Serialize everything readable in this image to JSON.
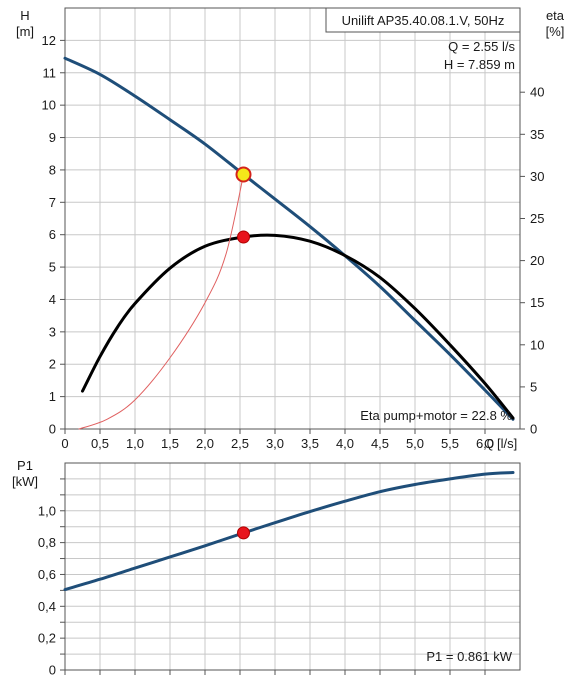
{
  "chart_data": [
    {
      "type": "line",
      "title": "Unilift AP35.40.08.1.V, 50Hz",
      "xlabel": "Q [l/s]",
      "ylabel_unit_top": "H",
      "ylabel_unit_bottom": "[m]",
      "y2label_unit_top": "eta",
      "y2label_unit_bottom": "[%]",
      "x_label_q": "Q",
      "x_label_unit": "[l/s]",
      "xlim": [
        0,
        6.5
      ],
      "ylim": [
        0,
        13
      ],
      "y2lim": [
        0,
        50
      ],
      "grid": true,
      "x_ticks": [
        "0",
        "0,5",
        "1,0",
        "1,5",
        "2,0",
        "2,5",
        "3,0",
        "3,5",
        "4,0",
        "4,5",
        "5,0",
        "5,5",
        "6,0"
      ],
      "y_ticks": [
        "0",
        "1",
        "2",
        "3",
        "4",
        "5",
        "6",
        "7",
        "8",
        "9",
        "10",
        "11",
        "12"
      ],
      "y2_ticks": [
        "0",
        "5",
        "10",
        "15",
        "20",
        "25",
        "30",
        "35",
        "40"
      ],
      "series": [
        {
          "axis": "left",
          "color": "#1f4e79",
          "points": [
            [
              0,
              11.45
            ],
            [
              0.5,
              10.95
            ],
            [
              1.0,
              10.28
            ],
            [
              1.5,
              9.55
            ],
            [
              2.0,
              8.8
            ],
            [
              2.55,
              7.86
            ],
            [
              3.0,
              7.1
            ],
            [
              3.5,
              6.25
            ],
            [
              4.0,
              5.35
            ],
            [
              4.5,
              4.4
            ],
            [
              5.0,
              3.35
            ],
            [
              5.5,
              2.3
            ],
            [
              6.0,
              1.2
            ],
            [
              6.4,
              0.3
            ]
          ]
        },
        {
          "axis": "right",
          "color": "#000000",
          "points": [
            [
              0.25,
              4.5
            ],
            [
              0.5,
              8.6
            ],
            [
              0.75,
              12.1
            ],
            [
              1.0,
              14.9
            ],
            [
              1.5,
              19.1
            ],
            [
              2.0,
              21.7
            ],
            [
              2.55,
              22.8
            ],
            [
              3.0,
              23.0
            ],
            [
              3.5,
              22.3
            ],
            [
              4.0,
              20.6
            ],
            [
              4.5,
              18.0
            ],
            [
              5.0,
              14.3
            ],
            [
              5.5,
              10.0
            ],
            [
              6.0,
              5.4
            ],
            [
              6.4,
              1.3
            ]
          ]
        },
        {
          "axis": "left",
          "color": "#e06060",
          "points": [
            [
              0.2,
              0
            ],
            [
              0.6,
              0.3
            ],
            [
              1.0,
              0.9
            ],
            [
              1.5,
              2.2
            ],
            [
              2.0,
              3.9
            ],
            [
              2.3,
              5.4
            ],
            [
              2.55,
              7.86
            ]
          ]
        }
      ],
      "operating_point": {
        "q": 2.55,
        "h": 7.859,
        "eta": 22.8
      },
      "annotations": {
        "q_text": "Q = 2.55 l/s",
        "h_text": "H = 7.859 m",
        "eta_text": "Eta pump+motor = 22.8 %"
      }
    },
    {
      "type": "line",
      "ylabel_unit_top": "P1",
      "ylabel_unit_bottom": "[kW]",
      "xlim": [
        0,
        6.5
      ],
      "ylim": [
        0,
        1.3
      ],
      "grid": true,
      "y_ticks": [
        "0",
        "0,2",
        "0,4",
        "0,6",
        "0,8",
        "1,0"
      ],
      "y_tick_values": [
        0,
        0.2,
        0.4,
        0.6,
        0.8,
        1.0
      ],
      "series": [
        {
          "color": "#1f4e79",
          "points": [
            [
              0,
              0.505
            ],
            [
              0.5,
              0.57
            ],
            [
              1.0,
              0.64
            ],
            [
              1.5,
              0.71
            ],
            [
              2.0,
              0.78
            ],
            [
              2.55,
              0.861
            ],
            [
              3.0,
              0.925
            ],
            [
              3.5,
              0.995
            ],
            [
              4.0,
              1.06
            ],
            [
              4.5,
              1.12
            ],
            [
              5.0,
              1.165
            ],
            [
              5.5,
              1.2
            ],
            [
              6.0,
              1.23
            ],
            [
              6.4,
              1.24
            ]
          ]
        }
      ],
      "operating_point": {
        "q": 2.55,
        "p1": 0.861
      },
      "annotations": {
        "p1_text": "P1 = 0.861 kW"
      }
    }
  ]
}
